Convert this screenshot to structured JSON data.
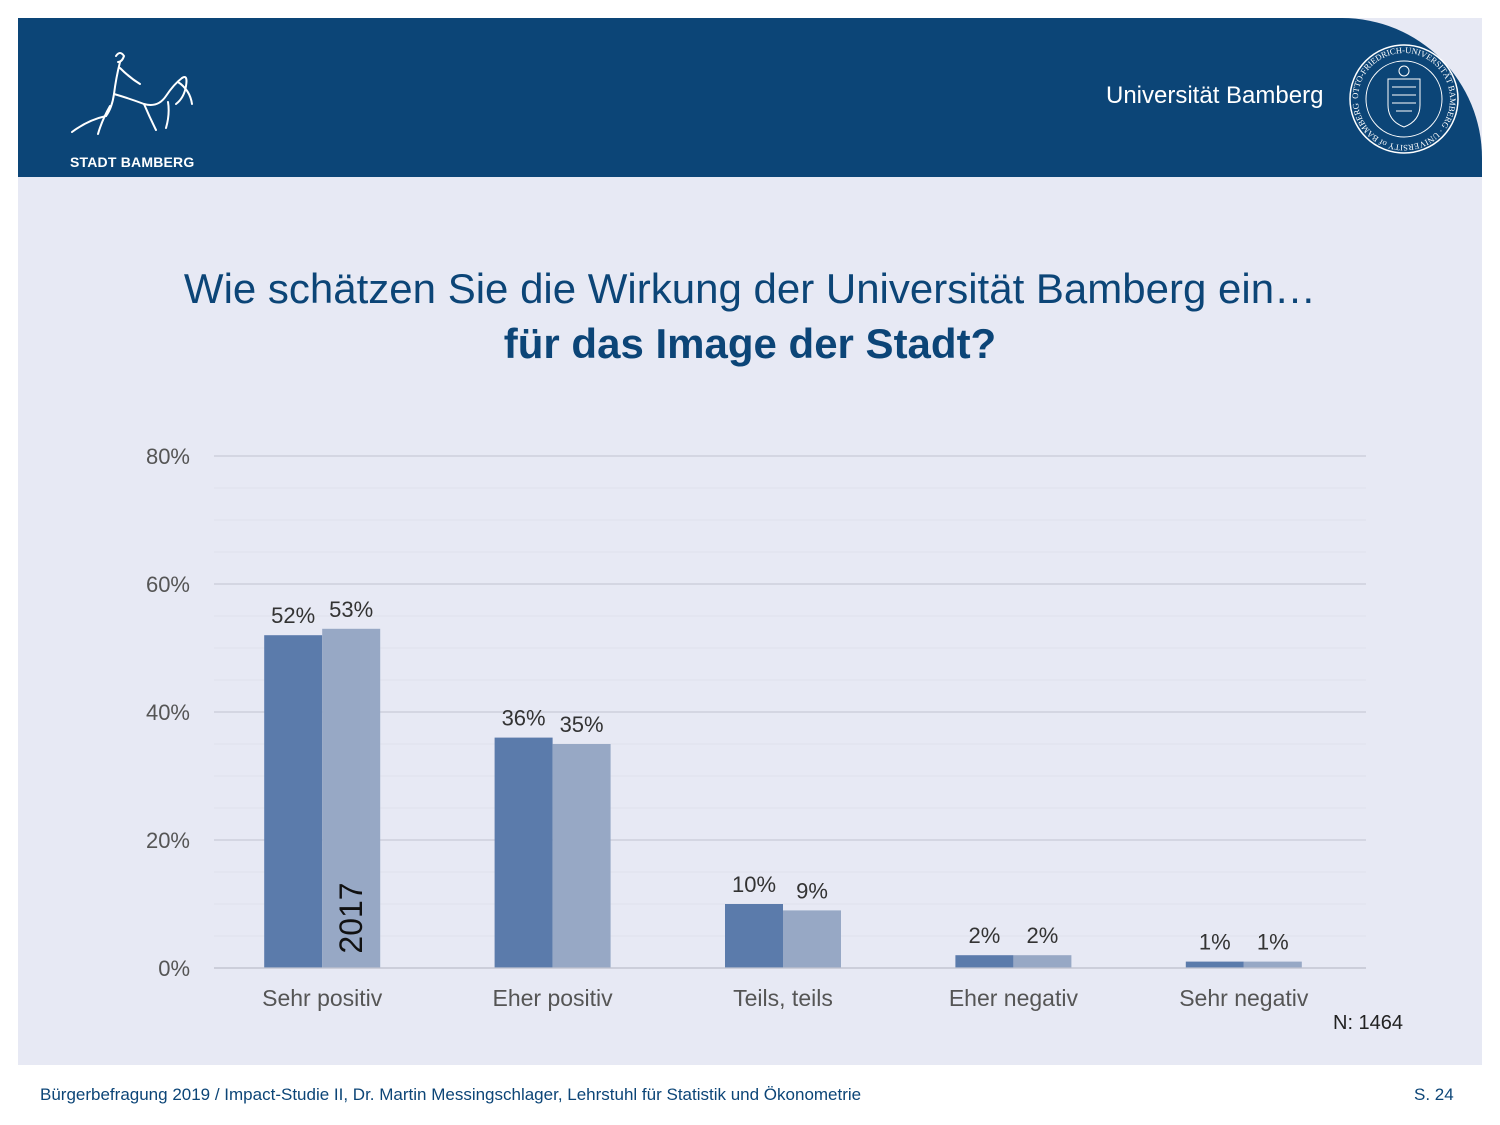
{
  "header": {
    "city_logo_text": "STADT BAMBERG",
    "university_name": "Universität Bamberg",
    "seal_text": "OTTO-FRIEDRICH-UNIVERSITÄT BAMBERG · UNIVERSITY of BAMBERG"
  },
  "title": {
    "line1": "Wie schätzen Sie die Wirkung der Universität Bamberg ein…",
    "line2": "für das Image der Stadt?"
  },
  "chart_data": {
    "type": "bar",
    "categories": [
      "Sehr positiv",
      "Eher positiv",
      "Teils, teils",
      "Eher negativ",
      "Sehr negativ"
    ],
    "series": [
      {
        "values": [
          52,
          36,
          10,
          2,
          1
        ],
        "labels": [
          "52%",
          "36%",
          "10%",
          "2%",
          "1%"
        ],
        "color": "#5b7bab"
      },
      {
        "name": "2017",
        "values": [
          53,
          35,
          9,
          2,
          1
        ],
        "labels": [
          "53%",
          "35%",
          "9%",
          "2%",
          "1%"
        ],
        "color": "#97a8c5"
      }
    ],
    "yticks": [
      "0%",
      "20%",
      "40%",
      "60%",
      "80%"
    ],
    "ylim": [
      0,
      80
    ],
    "grid": true,
    "note": "N: 1464"
  },
  "footer": {
    "text": "Bürgerbefragung 2019 / Impact-Studie II, Dr. Martin Messingschlager, Lehrstuhl für Statistik und Ökonometrie",
    "page": "S. 24"
  },
  "colors": {
    "header_bg": "#0c4577",
    "slide_bg": "#e7e9f4",
    "series_current": "#5b7bab",
    "series_2017": "#97a8c5"
  }
}
